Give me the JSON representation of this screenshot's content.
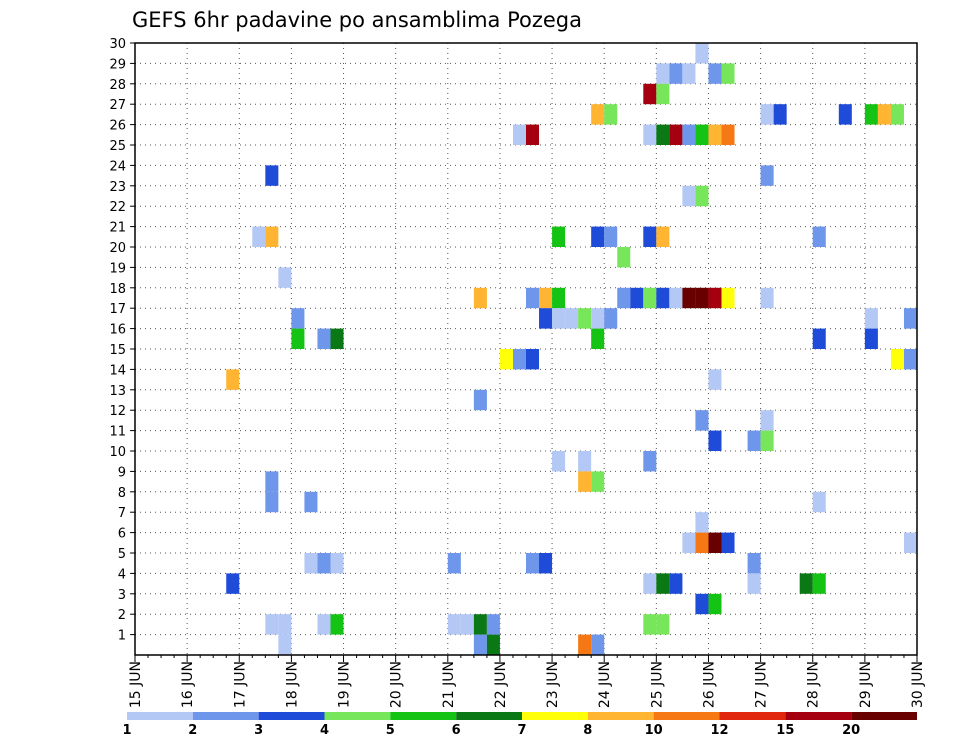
{
  "chart_data": {
    "type": "heatmap",
    "title": "GEFS 6hr padavine po ansamblima Pozega",
    "xlabel": "",
    "ylabel": "",
    "x_ticks": [
      "15 JUN",
      "16 JUN",
      "17 JUN",
      "18 JUN",
      "19 JUN",
      "20 JUN",
      "21 JUN",
      "22 JUN",
      "23 JUN",
      "24 JUN",
      "25 JUN",
      "26 JUN",
      "27 JUN",
      "28 JUN",
      "29 JUN",
      "30 JUN"
    ],
    "y_ticks": [
      "1",
      "2",
      "3",
      "4",
      "5",
      "6",
      "7",
      "8",
      "9",
      "10",
      "11",
      "12",
      "13",
      "14",
      "15",
      "16",
      "17",
      "18",
      "19",
      "20",
      "21",
      "22",
      "23",
      "24",
      "25",
      "26",
      "27",
      "28",
      "29",
      "30"
    ],
    "xlim": [
      "15 JUN 00Z",
      "30 JUN 00Z"
    ],
    "ylim": [
      0,
      30
    ],
    "steps_per_day": 4,
    "grid": true,
    "colorbar": {
      "placement": "bottom",
      "colors": [
        "#b4c8f5",
        "#6e96eb",
        "#1e4bd7",
        "#78e65a",
        "#14c314",
        "#0a7814",
        "#ffff0a",
        "#ffb432",
        "#f57814",
        "#e1280f",
        "#a5000f",
        "#690000"
      ],
      "labels": [
        "1",
        "2",
        "3",
        "4",
        "5",
        "6",
        "7",
        "8",
        "10",
        "12",
        "15",
        "20"
      ]
    },
    "cells": [
      {
        "member": 30,
        "t": 43,
        "v": 1.5
      },
      {
        "member": 29,
        "t": 40,
        "v": 1.5
      },
      {
        "member": 29,
        "t": 41,
        "v": 2.5
      },
      {
        "member": 29,
        "t": 42,
        "v": 1.5
      },
      {
        "member": 29,
        "t": 44,
        "v": 2.5
      },
      {
        "member": 29,
        "t": 45,
        "v": 4.5
      },
      {
        "member": 28,
        "t": 39,
        "v": 15
      },
      {
        "member": 28,
        "t": 40,
        "v": 4.5
      },
      {
        "member": 27,
        "t": 35,
        "v": 9
      },
      {
        "member": 27,
        "t": 36,
        "v": 4.5
      },
      {
        "member": 27,
        "t": 48,
        "v": 1.5
      },
      {
        "member": 27,
        "t": 49,
        "v": 3.5
      },
      {
        "member": 27,
        "t": 54,
        "v": 3.5
      },
      {
        "member": 27,
        "t": 56,
        "v": 5.5
      },
      {
        "member": 27,
        "t": 57,
        "v": 9
      },
      {
        "member": 27,
        "t": 58,
        "v": 4.5
      },
      {
        "member": 26,
        "t": 29,
        "v": 1.5
      },
      {
        "member": 26,
        "t": 30,
        "v": 15
      },
      {
        "member": 26,
        "t": 39,
        "v": 1.5
      },
      {
        "member": 26,
        "t": 40,
        "v": 6.5
      },
      {
        "member": 26,
        "t": 41,
        "v": 15
      },
      {
        "member": 26,
        "t": 42,
        "v": 2.5
      },
      {
        "member": 26,
        "t": 43,
        "v": 5.5
      },
      {
        "member": 26,
        "t": 44,
        "v": 9
      },
      {
        "member": 26,
        "t": 45,
        "v": 11
      },
      {
        "member": 24,
        "t": 10,
        "v": 3.5
      },
      {
        "member": 24,
        "t": 48,
        "v": 2.5
      },
      {
        "member": 23,
        "t": 42,
        "v": 1.5
      },
      {
        "member": 23,
        "t": 43,
        "v": 4.5
      },
      {
        "member": 21,
        "t": 9,
        "v": 1.5
      },
      {
        "member": 21,
        "t": 10,
        "v": 9
      },
      {
        "member": 21,
        "t": 32,
        "v": 5.5
      },
      {
        "member": 21,
        "t": 35,
        "v": 3.5
      },
      {
        "member": 21,
        "t": 36,
        "v": 2.5
      },
      {
        "member": 21,
        "t": 39,
        "v": 3.5
      },
      {
        "member": 21,
        "t": 40,
        "v": 9
      },
      {
        "member": 21,
        "t": 52,
        "v": 2.5
      },
      {
        "member": 20,
        "t": 37,
        "v": 4.5
      },
      {
        "member": 19,
        "t": 11,
        "v": 1.5
      },
      {
        "member": 18,
        "t": 26,
        "v": 9
      },
      {
        "member": 18,
        "t": 30,
        "v": 2.5
      },
      {
        "member": 18,
        "t": 31,
        "v": 9
      },
      {
        "member": 18,
        "t": 32,
        "v": 5.5
      },
      {
        "member": 18,
        "t": 37,
        "v": 2.5
      },
      {
        "member": 18,
        "t": 38,
        "v": 3.5
      },
      {
        "member": 18,
        "t": 39,
        "v": 4.5
      },
      {
        "member": 18,
        "t": 40,
        "v": 3.5
      },
      {
        "member": 18,
        "t": 41,
        "v": 1.5
      },
      {
        "member": 18,
        "t": 42,
        "v": 25
      },
      {
        "member": 18,
        "t": 43,
        "v": 25
      },
      {
        "member": 18,
        "t": 44,
        "v": 17
      },
      {
        "member": 18,
        "t": 45,
        "v": 7.5
      },
      {
        "member": 18,
        "t": 48,
        "v": 1.5
      },
      {
        "member": 17,
        "t": 12,
        "v": 2.5
      },
      {
        "member": 17,
        "t": 31,
        "v": 3.5
      },
      {
        "member": 17,
        "t": 32,
        "v": 1.5
      },
      {
        "member": 17,
        "t": 33,
        "v": 1.5
      },
      {
        "member": 17,
        "t": 34,
        "v": 4.5
      },
      {
        "member": 17,
        "t": 35,
        "v": 1.5
      },
      {
        "member": 17,
        "t": 36,
        "v": 2.5
      },
      {
        "member": 17,
        "t": 56,
        "v": 1.5
      },
      {
        "member": 17,
        "t": 59,
        "v": 2.5
      },
      {
        "member": 16,
        "t": 12,
        "v": 5.5
      },
      {
        "member": 16,
        "t": 14,
        "v": 2.5
      },
      {
        "member": 16,
        "t": 15,
        "v": 6.5
      },
      {
        "member": 16,
        "t": 35,
        "v": 5.5
      },
      {
        "member": 16,
        "t": 52,
        "v": 3.5
      },
      {
        "member": 16,
        "t": 56,
        "v": 3.5
      },
      {
        "member": 15,
        "t": 28,
        "v": 7.5
      },
      {
        "member": 15,
        "t": 29,
        "v": 2.5
      },
      {
        "member": 15,
        "t": 30,
        "v": 3.5
      },
      {
        "member": 15,
        "t": 58,
        "v": 7.5
      },
      {
        "member": 15,
        "t": 59,
        "v": 2.5
      },
      {
        "member": 14,
        "t": 7,
        "v": 9
      },
      {
        "member": 14,
        "t": 44,
        "v": 1.5
      },
      {
        "member": 13,
        "t": 26,
        "v": 2.5
      },
      {
        "member": 12,
        "t": 43,
        "v": 2.5
      },
      {
        "member": 12,
        "t": 48,
        "v": 1.5
      },
      {
        "member": 11,
        "t": 44,
        "v": 3.5
      },
      {
        "member": 11,
        "t": 47,
        "v": 2.5
      },
      {
        "member": 11,
        "t": 48,
        "v": 4.5
      },
      {
        "member": 10,
        "t": 32,
        "v": 1.5
      },
      {
        "member": 10,
        "t": 34,
        "v": 1.5
      },
      {
        "member": 10,
        "t": 39,
        "v": 2.5
      },
      {
        "member": 9,
        "t": 10,
        "v": 2.5
      },
      {
        "member": 9,
        "t": 34,
        "v": 9
      },
      {
        "member": 9,
        "t": 35,
        "v": 4.5
      },
      {
        "member": 8,
        "t": 10,
        "v": 2.5
      },
      {
        "member": 8,
        "t": 13,
        "v": 2.5
      },
      {
        "member": 8,
        "t": 52,
        "v": 1.5
      },
      {
        "member": 7,
        "t": 43,
        "v": 1.5
      },
      {
        "member": 6,
        "t": 42,
        "v": 1.5
      },
      {
        "member": 6,
        "t": 43,
        "v": 11
      },
      {
        "member": 6,
        "t": 44,
        "v": 25
      },
      {
        "member": 6,
        "t": 45,
        "v": 3.5
      },
      {
        "member": 6,
        "t": 59,
        "v": 1.5
      },
      {
        "member": 5,
        "t": 13,
        "v": 1.5
      },
      {
        "member": 5,
        "t": 14,
        "v": 2.5
      },
      {
        "member": 5,
        "t": 15,
        "v": 1.5
      },
      {
        "member": 5,
        "t": 24,
        "v": 2.5
      },
      {
        "member": 5,
        "t": 30,
        "v": 2.5
      },
      {
        "member": 5,
        "t": 31,
        "v": 3.5
      },
      {
        "member": 5,
        "t": 47,
        "v": 2.5
      },
      {
        "member": 4,
        "t": 7,
        "v": 3.5
      },
      {
        "member": 4,
        "t": 39,
        "v": 1.5
      },
      {
        "member": 4,
        "t": 40,
        "v": 6.5
      },
      {
        "member": 4,
        "t": 41,
        "v": 3.5
      },
      {
        "member": 4,
        "t": 47,
        "v": 1.5
      },
      {
        "member": 4,
        "t": 51,
        "v": 6.5
      },
      {
        "member": 4,
        "t": 52,
        "v": 5.5
      },
      {
        "member": 3,
        "t": 43,
        "v": 3.5
      },
      {
        "member": 3,
        "t": 44,
        "v": 5.5
      },
      {
        "member": 2,
        "t": 10,
        "v": 1.5
      },
      {
        "member": 2,
        "t": 11,
        "v": 1.5
      },
      {
        "member": 2,
        "t": 14,
        "v": 1.5
      },
      {
        "member": 2,
        "t": 15,
        "v": 5.5
      },
      {
        "member": 2,
        "t": 24,
        "v": 1.5
      },
      {
        "member": 2,
        "t": 25,
        "v": 1.5
      },
      {
        "member": 2,
        "t": 26,
        "v": 6.5
      },
      {
        "member": 2,
        "t": 27,
        "v": 2.5
      },
      {
        "member": 2,
        "t": 39,
        "v": 4.5
      },
      {
        "member": 2,
        "t": 40,
        "v": 4.5
      },
      {
        "member": 1,
        "t": 11,
        "v": 1.5
      },
      {
        "member": 1,
        "t": 26,
        "v": 2.5
      },
      {
        "member": 1,
        "t": 27,
        "v": 6.5
      },
      {
        "member": 1,
        "t": 34,
        "v": 11
      },
      {
        "member": 1,
        "t": 35,
        "v": 2.5
      }
    ]
  }
}
